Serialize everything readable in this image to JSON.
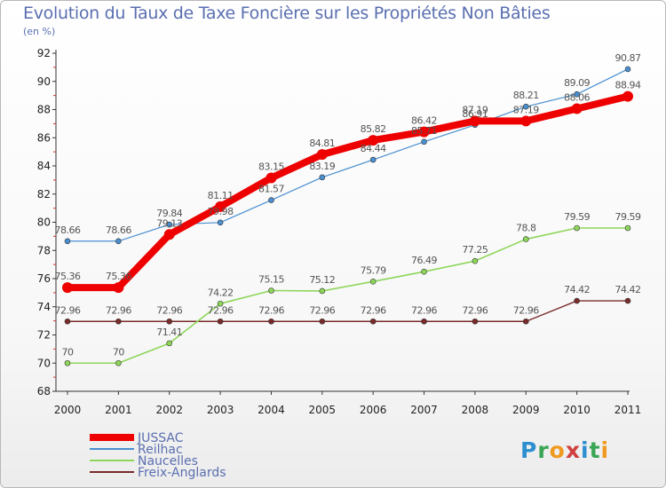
{
  "chart_data": {
    "type": "line",
    "title": "Evolution du Taux de Taxe Foncière sur les Propriétés Non Bâties",
    "unit_label": "(en %)",
    "xlabel": "",
    "ylabel": "(en %)",
    "categories": [
      "2000",
      "2001",
      "2002",
      "2003",
      "2004",
      "2005",
      "2006",
      "2007",
      "2008",
      "2009",
      "2010",
      "2011"
    ],
    "ylim": [
      68,
      92
    ],
    "yticks": [
      68,
      70,
      72,
      74,
      76,
      78,
      80,
      82,
      84,
      86,
      88,
      90,
      92
    ],
    "series": [
      {
        "name": "JUSSAC",
        "color": "#ee0000",
        "values": [
          75.36,
          75.36,
          79.13,
          81.11,
          83.15,
          84.81,
          85.82,
          86.42,
          87.19,
          87.19,
          88.06,
          88.94
        ],
        "labels": [
          "75.36",
          "75.36",
          "79.13",
          "81.11",
          "83.15",
          "84.81",
          "85.82",
          "86.42",
          "87.19",
          "87.19",
          "88.06",
          "88.94"
        ]
      },
      {
        "name": "Reilhac",
        "color": "#4a8fd0",
        "values": [
          78.66,
          78.66,
          79.84,
          79.98,
          81.57,
          83.19,
          84.44,
          85.71,
          86.91,
          88.21,
          89.09,
          90.87
        ],
        "labels": [
          "78.66",
          "78.66",
          "79.84",
          "79.98",
          "81.57",
          "83.19",
          "84.44",
          "85.71",
          "86.91",
          "88.21",
          "89.09",
          "90.87"
        ]
      },
      {
        "name": "Naucelles",
        "color": "#8ed65a",
        "values": [
          70,
          70,
          71.41,
          74.22,
          75.15,
          75.12,
          75.79,
          76.49,
          77.25,
          78.8,
          79.59,
          79.59
        ],
        "labels": [
          "70",
          "70",
          "71.41",
          "74.22",
          "75.15",
          "75.12",
          "75.79",
          "76.49",
          "77.25",
          "78.8",
          "79.59",
          "79.59"
        ]
      },
      {
        "name": "Freix-Anglards",
        "color": "#7a2a2a",
        "values": [
          72.96,
          72.96,
          72.96,
          72.96,
          72.96,
          72.96,
          72.96,
          72.96,
          72.96,
          72.96,
          74.42,
          74.42
        ],
        "labels": [
          "72.96",
          "72.96",
          "72.96",
          "72.96",
          "72.96",
          "72.96",
          "72.96",
          "72.96",
          "72.96",
          "72.96",
          "74.42",
          "74.42"
        ]
      }
    ],
    "grid": false,
    "legend_position": "bottom-left"
  },
  "logo_letters": [
    "P",
    "r",
    "o",
    "x",
    "i",
    "t",
    "i"
  ]
}
